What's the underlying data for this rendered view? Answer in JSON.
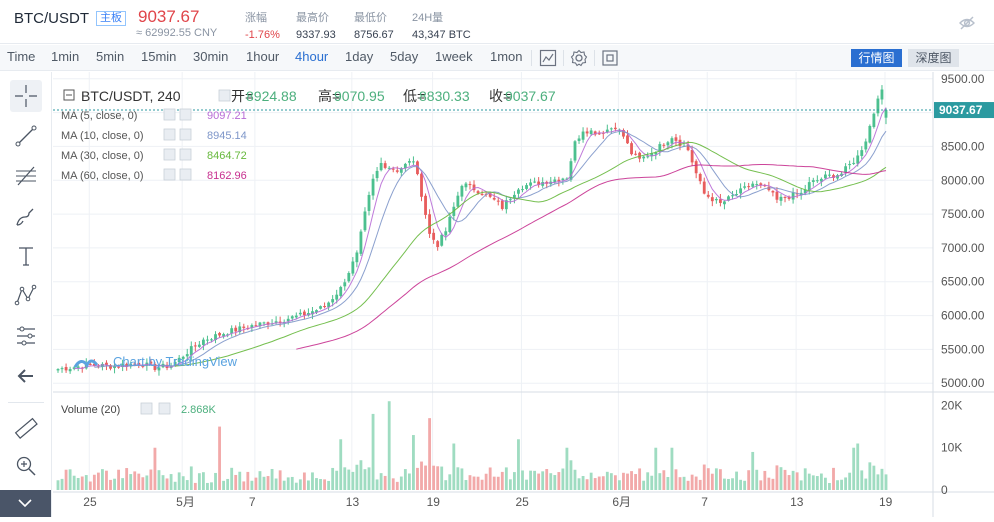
{
  "header": {
    "symbol": "BTC/USDT",
    "board_badge": "主板",
    "price": "9037.67",
    "price_cny": "≈ 62992.55 CNY",
    "stats": [
      {
        "label": "涨幅",
        "value": "-1.76%",
        "negative": true
      },
      {
        "label": "最高价",
        "value": "9337.93",
        "negative": false
      },
      {
        "label": "最低价",
        "value": "8756.67",
        "negative": false
      },
      {
        "label": "24H量",
        "value": "43,347 BTC",
        "negative": false
      }
    ],
    "hide_icon": "eye-off-icon"
  },
  "toolbar": {
    "intervals": [
      "Time",
      "1min",
      "5min",
      "15min",
      "30min",
      "1hour",
      "4hour",
      "1day",
      "5day",
      "1week",
      "1mon"
    ],
    "active_interval": "4hour",
    "icons": [
      "indicators-icon",
      "settings-icon",
      "fullscreen-icon"
    ],
    "market_button": "行情图",
    "depth_button": "深度图"
  },
  "left_tools": [
    "crosshair-icon",
    "trendline-icon",
    "fib-icon",
    "brush-icon",
    "text-icon",
    "pattern-icon",
    "measure-icon",
    "back-arrow-icon",
    "ruler-icon",
    "zoom-icon"
  ],
  "legend": {
    "title": "BTC/USDT, 240",
    "open_label": "开=",
    "open": "8924.88",
    "high_label": "高=",
    "high": "9070.95",
    "low_label": "低=",
    "low": "8830.33",
    "close_label": "收=",
    "close": "9037.67",
    "ma": [
      {
        "label": "MA (5, close, 0)",
        "value": "9097.21",
        "color": "#b86bd6"
      },
      {
        "label": "MA (10, close, 0)",
        "value": "8945.14",
        "color": "#7e96c9"
      },
      {
        "label": "MA (30, close, 0)",
        "value": "8464.72",
        "color": "#66b83c"
      },
      {
        "label": "MA (60, close, 0)",
        "value": "8162.96",
        "color": "#c7308f"
      }
    ],
    "volume_label": "Volume (20)",
    "volume_value": "2.868K",
    "watermark": "Chart by TradingView"
  },
  "colors": {
    "up": "#4cc08f",
    "down": "#e85d5d",
    "last_price": "#2b9aa0",
    "grid": "#eef1f5"
  },
  "chart_data": {
    "type": "candlestick",
    "title": "BTC/USDT, 240",
    "ylim": [
      4900,
      9600
    ],
    "y_ticks": [
      "9500.00",
      "9000.00",
      "8500.00",
      "8000.00",
      "7500.00",
      "7000.00",
      "6500.00",
      "6000.00",
      "5500.00",
      "5000.00"
    ],
    "x_ticks": [
      "25",
      "5月",
      "7",
      "13",
      "19",
      "25",
      "6月",
      "7",
      "13",
      "19"
    ],
    "last_price_label": "9037.67",
    "close_path": [
      [
        0,
        5210
      ],
      [
        8,
        5270
      ],
      [
        14,
        5250
      ],
      [
        20,
        5300
      ],
      [
        24,
        5230
      ],
      [
        28,
        5260
      ],
      [
        32,
        5460
      ],
      [
        36,
        5640
      ],
      [
        42,
        5760
      ],
      [
        48,
        5850
      ],
      [
        54,
        5920
      ],
      [
        60,
        6000
      ],
      [
        66,
        6130
      ],
      [
        70,
        6400
      ],
      [
        74,
        6900
      ],
      [
        76,
        7500
      ],
      [
        78,
        8000
      ],
      [
        80,
        8250
      ],
      [
        84,
        8150
      ],
      [
        88,
        8300
      ],
      [
        90,
        7800
      ],
      [
        92,
        7200
      ],
      [
        94,
        7050
      ],
      [
        96,
        7250
      ],
      [
        98,
        7600
      ],
      [
        100,
        7950
      ],
      [
        104,
        7850
      ],
      [
        108,
        7700
      ],
      [
        110,
        7600
      ],
      [
        114,
        7900
      ],
      [
        118,
        7950
      ],
      [
        122,
        8000
      ],
      [
        126,
        8050
      ],
      [
        128,
        8550
      ],
      [
        130,
        8750
      ],
      [
        134,
        8700
      ],
      [
        138,
        8800
      ],
      [
        140,
        8650
      ],
      [
        142,
        8400
      ],
      [
        144,
        8300
      ],
      [
        148,
        8450
      ],
      [
        152,
        8650
      ],
      [
        156,
        8450
      ],
      [
        158,
        8100
      ],
      [
        160,
        7800
      ],
      [
        164,
        7650
      ],
      [
        168,
        7800
      ],
      [
        172,
        7950
      ],
      [
        176,
        7850
      ],
      [
        178,
        7700
      ],
      [
        180,
        7750
      ],
      [
        184,
        7800
      ],
      [
        186,
        7950
      ],
      [
        190,
        8050
      ],
      [
        194,
        8100
      ],
      [
        198,
        8350
      ],
      [
        200,
        8600
      ],
      [
        202,
        9000
      ],
      [
        203,
        9250
      ],
      [
        204,
        9300
      ],
      [
        205,
        9037.67
      ]
    ],
    "ma_series": [
      {
        "name": "MA (5, close, 0)",
        "period": 5
      },
      {
        "name": "MA (10, close, 0)",
        "period": 10
      },
      {
        "name": "MA (30, close, 0)",
        "period": 30
      },
      {
        "name": "MA (60, close, 0)",
        "period": 60
      }
    ],
    "volume": {
      "ylim": [
        0,
        22000
      ],
      "y_ticks": [
        "20K",
        "10K",
        "0"
      ],
      "spikes": [
        [
          24,
          10
        ],
        [
          40,
          15
        ],
        [
          70,
          12
        ],
        [
          78,
          18
        ],
        [
          82,
          21
        ],
        [
          88,
          13
        ],
        [
          92,
          17
        ],
        [
          98,
          11
        ],
        [
          114,
          12
        ],
        [
          126,
          10
        ],
        [
          148,
          10
        ],
        [
          152,
          10
        ],
        [
          172,
          9
        ],
        [
          197,
          10
        ],
        [
          198,
          11
        ]
      ]
    }
  }
}
